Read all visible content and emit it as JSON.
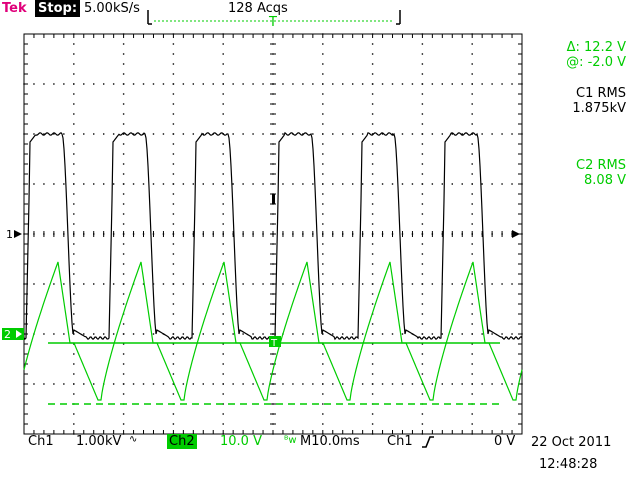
{
  "header": {
    "brand": "Tek",
    "run_status": "Stop:",
    "sample_rate": "5.00kS/s",
    "acquisitions": "128 Acqs"
  },
  "measurements": {
    "cursor_delta": "Δ: 12.2 V",
    "cursor_at": "@: -2.0 V",
    "c1_label": "C1 RMS",
    "c1_value": "1.875kV",
    "c2_label": "C2 RMS",
    "c2_value": "8.08 V"
  },
  "markers": {
    "ch1": "1",
    "ch2": "2",
    "trigger_top": "T"
  },
  "footer": {
    "ch1_label": "Ch1",
    "ch1_scale": "1.00kV",
    "ch1_coupling": "∿",
    "ch2_label": "Ch2",
    "ch2_scale": "10.0 V",
    "bw_icon": "bw-limit-icon",
    "timebase": "M10.0ms",
    "trigger_source": "Ch1",
    "trigger_slope_icon": "rising-edge-icon",
    "trigger_level": "0 V",
    "date": "22 Oct 2011",
    "time": "12:48:28"
  },
  "colors": {
    "ch1": "#000000",
    "ch2": "#00cc00",
    "brand": "#e0007a",
    "grid": "#000000"
  }
}
